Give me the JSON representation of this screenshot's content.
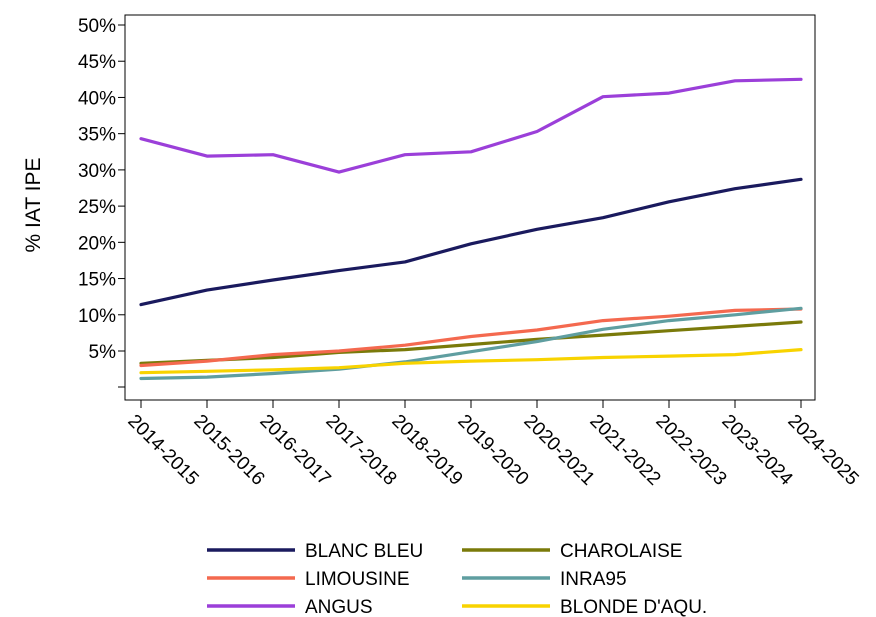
{
  "chart_data": {
    "type": "line",
    "title": "",
    "xlabel": "",
    "ylabel": "% IAT IPE",
    "x": [
      "2014-2015",
      "2015-2016",
      "2016-2017",
      "2017-2018",
      "2018-2019",
      "2019-2020",
      "2020-2021",
      "2021-2022",
      "2022-2023",
      "2023-2024",
      "2024-2025"
    ],
    "yticks": [
      "5%",
      "10%",
      "15%",
      "20%",
      "25%",
      "30%",
      "35%",
      "40%",
      "45%",
      "50%"
    ],
    "ylim": [
      0,
      50
    ],
    "grid": true,
    "legend_position": "bottom",
    "series": [
      {
        "name": "BLANC BLEU",
        "color": "#1a1a5e",
        "values": [
          11.4,
          13.4,
          14.8,
          16.1,
          17.3,
          19.8,
          21.8,
          23.4,
          25.6,
          27.4,
          28.7
        ]
      },
      {
        "name": "CHAROLAISE",
        "color": "#7a7a0a",
        "values": [
          3.3,
          3.7,
          4.1,
          4.8,
          5.2,
          5.9,
          6.6,
          7.2,
          7.8,
          8.4,
          9.0
        ]
      },
      {
        "name": "LIMOUSINE",
        "color": "#f4694f",
        "values": [
          3.0,
          3.6,
          4.5,
          5.0,
          5.8,
          7.0,
          7.9,
          9.2,
          9.8,
          10.6,
          10.8
        ]
      },
      {
        "name": "INRA95",
        "color": "#5f9ea0",
        "values": [
          1.2,
          1.4,
          1.9,
          2.5,
          3.5,
          4.9,
          6.3,
          8.0,
          9.2,
          10.0,
          10.9
        ]
      },
      {
        "name": "ANGUS",
        "color": "#9b3fd9",
        "values": [
          34.3,
          31.9,
          32.1,
          29.7,
          32.1,
          32.5,
          35.3,
          40.1,
          40.6,
          42.3,
          42.5
        ]
      },
      {
        "name": "BLONDE D'AQU.",
        "color": "#f8d300",
        "values": [
          2.0,
          2.2,
          2.4,
          2.7,
          3.3,
          3.6,
          3.8,
          4.1,
          4.3,
          4.5,
          5.2
        ]
      }
    ]
  },
  "header": {
    "partial_title": "‑‑‑‑ ‑‑‑‑‑ ‑‑‑‑‑ ‑‑‑‑‑ ‑‑‑‑‑‑"
  }
}
